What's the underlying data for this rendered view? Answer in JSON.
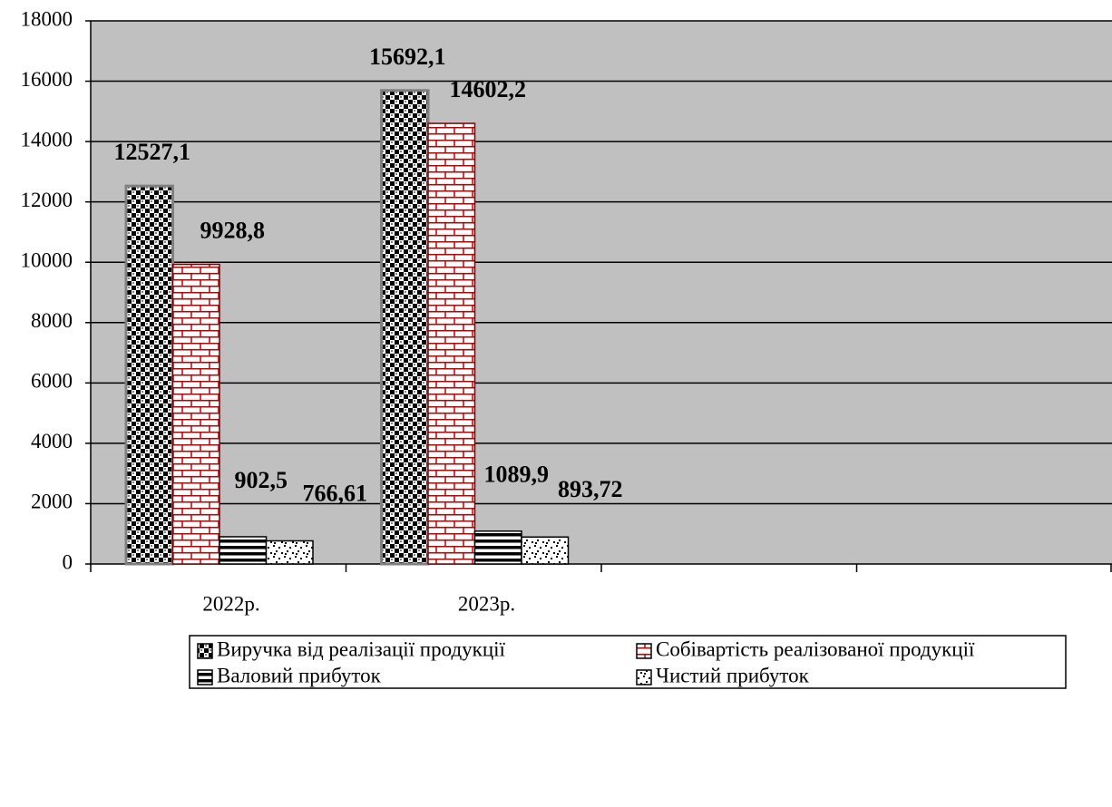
{
  "chart_data": {
    "type": "bar",
    "categories": [
      "2022р.",
      "2023р.",
      null,
      null
    ],
    "series": [
      {
        "name": "Виручка від реалізації продукції",
        "color": "#000000",
        "values": [
          12527.1,
          15692.1,
          null,
          null
        ],
        "value_labels": [
          "12527,1",
          "15692,1",
          null,
          null
        ]
      },
      {
        "name": "Собівартість реалізованої продукції",
        "color": "#c00000",
        "values": [
          9928.8,
          14602.2,
          null,
          null
        ],
        "value_labels": [
          "9928,8",
          "14602,2",
          null,
          null
        ]
      },
      {
        "name": "Валовий прибуток",
        "color": "#000000",
        "values": [
          902.5,
          1089.9,
          null,
          null
        ],
        "value_labels": [
          "902,5",
          "1089,9",
          null,
          null
        ]
      },
      {
        "name": "Чистий прибуток",
        "color": "#000000",
        "values": [
          766.61,
          893.72,
          null,
          null
        ],
        "value_labels": [
          "766,61",
          "893,72",
          null,
          null
        ]
      }
    ],
    "ylim": [
      0,
      18000
    ],
    "yticks": [
      0,
      2000,
      4000,
      6000,
      8000,
      10000,
      12000,
      14000,
      16000,
      18000
    ],
    "grid": true
  }
}
